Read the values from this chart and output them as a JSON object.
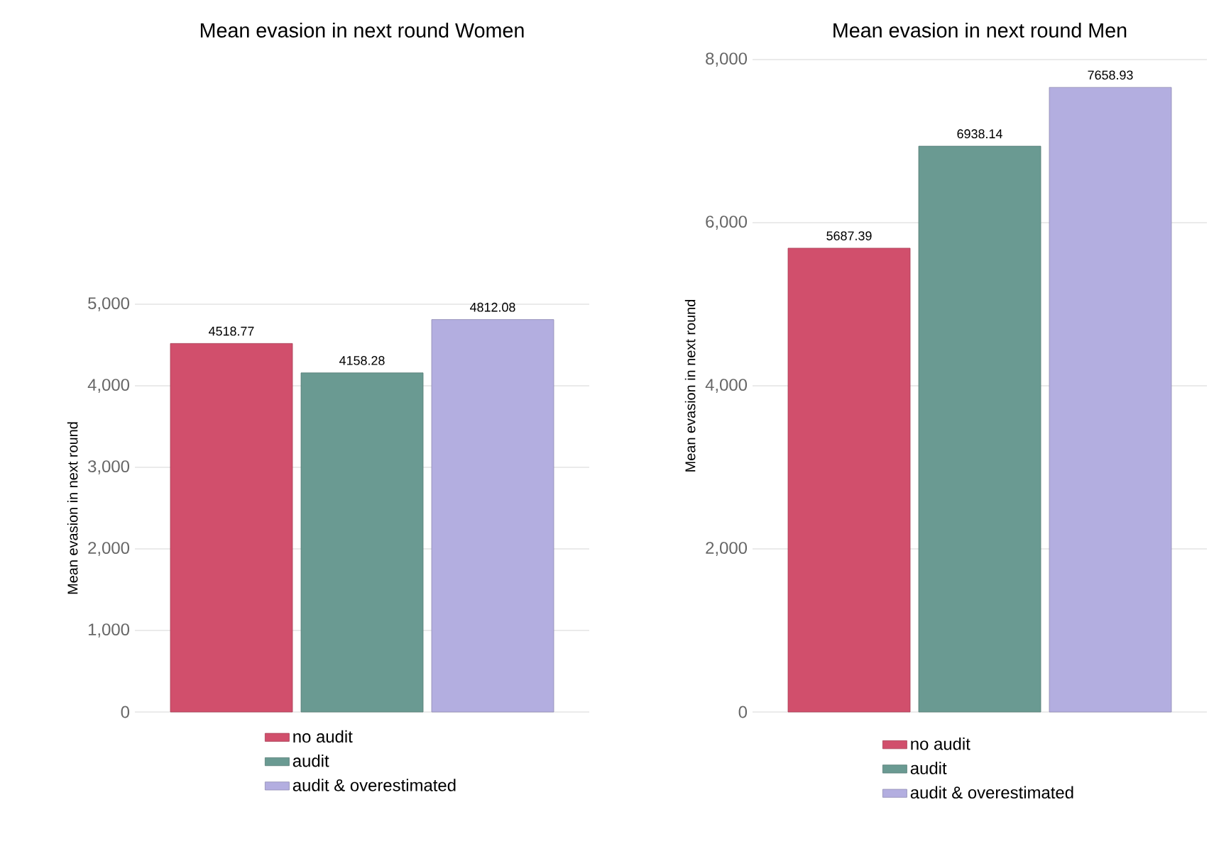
{
  "chart_data": [
    {
      "type": "bar",
      "title": "Mean evasion in next round Women",
      "ylabel": "Mean evasion in next round",
      "categories": [
        null
      ],
      "series": [
        {
          "name": "no audit",
          "color": "#d14f6c",
          "values": [
            4518.77
          ]
        },
        {
          "name": "audit",
          "color": "#6a9a92",
          "values": [
            4158.28
          ]
        },
        {
          "name": "audit & overestimated",
          "color": "#b3aee0",
          "values": [
            4812.08
          ]
        }
      ],
      "ylim": [
        0,
        5000
      ],
      "yticks": [
        0,
        {
          "value": 1000,
          "label": "1,000"
        },
        {
          "value": 2000,
          "label": "2,000"
        },
        {
          "value": 3000,
          "label": "3,000"
        },
        {
          "value": 4000,
          "label": "4,000"
        },
        {
          "value": 5000,
          "label": "5,000"
        }
      ],
      "grid": "y",
      "legend": "bottom",
      "data_labels": true
    },
    {
      "type": "bar",
      "title": "Mean evasion in next round Men",
      "ylabel": "Mean evasion in next round",
      "categories": [
        null
      ],
      "series": [
        {
          "name": "no audit",
          "color": "#d14f6c",
          "values": [
            5687.39
          ]
        },
        {
          "name": "audit",
          "color": "#6a9a92",
          "values": [
            6938.14
          ]
        },
        {
          "name": "audit & overestimated",
          "color": "#b3aee0",
          "values": [
            7658.93
          ]
        }
      ],
      "ylim": [
        0,
        8000
      ],
      "yticks": [
        0,
        {
          "value": 2000,
          "label": "2,000"
        },
        {
          "value": 4000,
          "label": "4,000"
        },
        {
          "value": 6000,
          "label": "6,000"
        },
        {
          "value": 8000,
          "label": "8,000"
        }
      ],
      "grid": "y",
      "legend": "bottom",
      "data_labels": true
    }
  ]
}
